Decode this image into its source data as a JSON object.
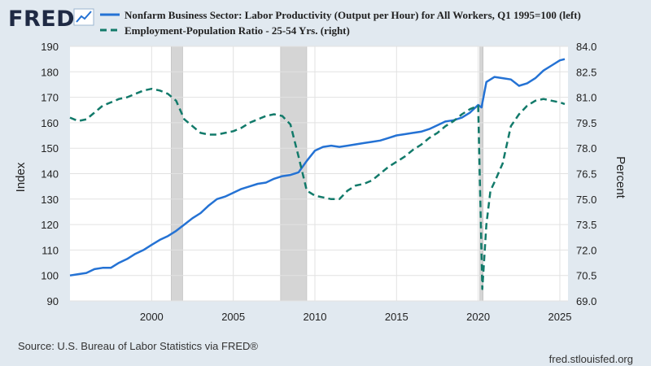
{
  "brand": {
    "logo_text": "FRED"
  },
  "footer": {
    "source": "Source: U.S. Bureau of Labor Statistics via FRED®",
    "site": "fred.stlouisfed.org"
  },
  "colors": {
    "series_1": "#2472d4",
    "series_2": "#127a6a",
    "recession": "#d5d5d5",
    "background": "#e1e9f0",
    "plot_bg": "#ffffff",
    "grid": "#e2e2e2"
  },
  "chart_data": {
    "type": "line",
    "left_axis": {
      "label": "Index",
      "ylim": [
        90,
        190
      ],
      "ticks": [
        90,
        100,
        110,
        120,
        130,
        140,
        150,
        160,
        170,
        180,
        190
      ]
    },
    "right_axis": {
      "label": "Percent",
      "ylim": [
        69.0,
        84.0
      ],
      "ticks": [
        "69.0",
        "70.5",
        "72.0",
        "73.5",
        "75.0",
        "76.5",
        "78.0",
        "79.5",
        "81.0",
        "82.5",
        "84.0"
      ]
    },
    "x_axis": {
      "xlim": [
        1995.0,
        2025.5
      ],
      "ticks": [
        2000,
        2005,
        2010,
        2015,
        2020,
        2025
      ]
    },
    "grid": true,
    "legend_position": "top",
    "recessions": [
      [
        2001.2,
        2001.9
      ],
      [
        2007.9,
        2009.5
      ],
      [
        2020.1,
        2020.3
      ]
    ],
    "series": [
      {
        "name": "Nonfarm Business Sector: Labor Productivity (Output per Hour) for All Workers, Q1 1995=100 (left)",
        "axis": "left",
        "style": "solid",
        "points": [
          [
            1995.0,
            100.0
          ],
          [
            1995.5,
            100.5
          ],
          [
            1996.0,
            101.0
          ],
          [
            1996.5,
            102.5
          ],
          [
            1997.0,
            103.0
          ],
          [
            1997.5,
            103.0
          ],
          [
            1998.0,
            105.0
          ],
          [
            1998.5,
            106.5
          ],
          [
            1999.0,
            108.5
          ],
          [
            1999.5,
            110.0
          ],
          [
            2000.0,
            112.0
          ],
          [
            2000.5,
            114.0
          ],
          [
            2001.0,
            115.5
          ],
          [
            2001.5,
            117.5
          ],
          [
            2002.0,
            120.0
          ],
          [
            2002.5,
            122.5
          ],
          [
            2003.0,
            124.5
          ],
          [
            2003.5,
            127.5
          ],
          [
            2004.0,
            130.0
          ],
          [
            2004.5,
            131.0
          ],
          [
            2005.0,
            132.5
          ],
          [
            2005.5,
            134.0
          ],
          [
            2006.0,
            135.0
          ],
          [
            2006.5,
            136.0
          ],
          [
            2007.0,
            136.5
          ],
          [
            2007.5,
            138.0
          ],
          [
            2008.0,
            139.0
          ],
          [
            2008.5,
            139.5
          ],
          [
            2009.0,
            140.5
          ],
          [
            2009.5,
            145.0
          ],
          [
            2010.0,
            149.0
          ],
          [
            2010.5,
            150.5
          ],
          [
            2011.0,
            151.0
          ],
          [
            2011.5,
            150.5
          ],
          [
            2012.0,
            151.0
          ],
          [
            2012.5,
            151.5
          ],
          [
            2013.0,
            152.0
          ],
          [
            2013.5,
            152.5
          ],
          [
            2014.0,
            153.0
          ],
          [
            2014.5,
            154.0
          ],
          [
            2015.0,
            155.0
          ],
          [
            2015.5,
            155.5
          ],
          [
            2016.0,
            156.0
          ],
          [
            2016.5,
            156.5
          ],
          [
            2017.0,
            157.5
          ],
          [
            2017.5,
            159.0
          ],
          [
            2018.0,
            160.5
          ],
          [
            2018.5,
            161.0
          ],
          [
            2019.0,
            162.0
          ],
          [
            2019.5,
            164.0
          ],
          [
            2020.0,
            167.0
          ],
          [
            2020.2,
            166.0
          ],
          [
            2020.5,
            176.0
          ],
          [
            2021.0,
            178.0
          ],
          [
            2021.5,
            177.5
          ],
          [
            2022.0,
            177.0
          ],
          [
            2022.5,
            174.5
          ],
          [
            2023.0,
            175.5
          ],
          [
            2023.5,
            177.5
          ],
          [
            2024.0,
            180.5
          ],
          [
            2024.5,
            182.5
          ],
          [
            2025.0,
            184.5
          ],
          [
            2025.3,
            185.0
          ]
        ]
      },
      {
        "name": "Employment-Population Ratio - 25-54 Yrs. (right)",
        "axis": "right",
        "style": "dashed",
        "points": [
          [
            1995.0,
            79.8
          ],
          [
            1995.5,
            79.6
          ],
          [
            1996.0,
            79.7
          ],
          [
            1996.5,
            80.1
          ],
          [
            1997.0,
            80.5
          ],
          [
            1997.5,
            80.7
          ],
          [
            1998.0,
            80.9
          ],
          [
            1998.5,
            81.0
          ],
          [
            1999.0,
            81.2
          ],
          [
            1999.5,
            81.4
          ],
          [
            2000.0,
            81.5
          ],
          [
            2000.5,
            81.4
          ],
          [
            2001.0,
            81.2
          ],
          [
            2001.5,
            80.8
          ],
          [
            2002.0,
            79.7
          ],
          [
            2002.5,
            79.3
          ],
          [
            2003.0,
            78.9
          ],
          [
            2003.5,
            78.8
          ],
          [
            2004.0,
            78.8
          ],
          [
            2004.5,
            78.9
          ],
          [
            2005.0,
            79.0
          ],
          [
            2005.5,
            79.2
          ],
          [
            2006.0,
            79.5
          ],
          [
            2006.5,
            79.7
          ],
          [
            2007.0,
            79.9
          ],
          [
            2007.5,
            80.0
          ],
          [
            2008.0,
            79.9
          ],
          [
            2008.5,
            79.4
          ],
          [
            2009.0,
            77.5
          ],
          [
            2009.5,
            75.5
          ],
          [
            2010.0,
            75.2
          ],
          [
            2010.5,
            75.1
          ],
          [
            2011.0,
            75.0
          ],
          [
            2011.5,
            75.0
          ],
          [
            2012.0,
            75.5
          ],
          [
            2012.5,
            75.8
          ],
          [
            2013.0,
            75.9
          ],
          [
            2013.5,
            76.1
          ],
          [
            2014.0,
            76.5
          ],
          [
            2014.5,
            76.9
          ],
          [
            2015.0,
            77.2
          ],
          [
            2015.5,
            77.5
          ],
          [
            2016.0,
            77.9
          ],
          [
            2016.5,
            78.2
          ],
          [
            2017.0,
            78.6
          ],
          [
            2017.5,
            78.9
          ],
          [
            2018.0,
            79.3
          ],
          [
            2018.5,
            79.6
          ],
          [
            2019.0,
            80.0
          ],
          [
            2019.5,
            80.3
          ],
          [
            2020.0,
            80.5
          ],
          [
            2020.25,
            69.7
          ],
          [
            2020.5,
            73.5
          ],
          [
            2020.75,
            75.5
          ],
          [
            2021.0,
            76.0
          ],
          [
            2021.5,
            77.1
          ],
          [
            2022.0,
            79.3
          ],
          [
            2022.5,
            80.0
          ],
          [
            2023.0,
            80.5
          ],
          [
            2023.5,
            80.8
          ],
          [
            2024.0,
            80.9
          ],
          [
            2024.5,
            80.8
          ],
          [
            2025.0,
            80.7
          ],
          [
            2025.3,
            80.6
          ]
        ]
      }
    ]
  }
}
